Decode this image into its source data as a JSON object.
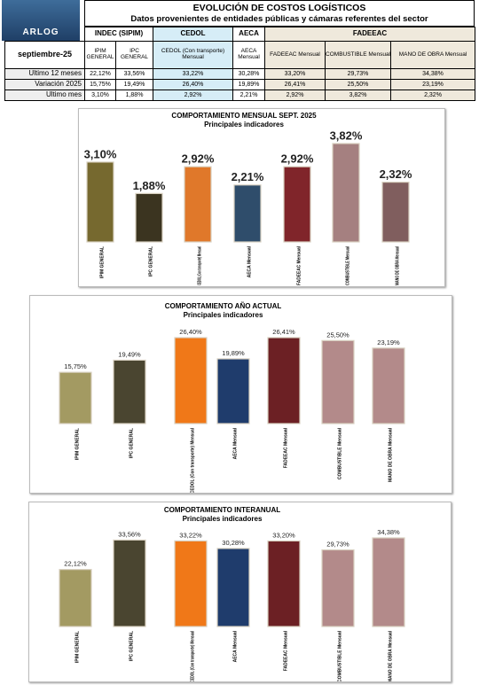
{
  "header": {
    "logo": "ARLOG",
    "title": "EVOLUCIÓN DE COSTOS LOGÍSTICOS",
    "subtitle": "Datos provenientes de entidades públicas y cámaras referentes del sector"
  },
  "table": {
    "period": "septiembre-25",
    "groups": [
      "INDEC (SIPIM)",
      "CEDOL",
      "AECA",
      "FADEEAC"
    ],
    "columns": [
      "IPIM GENERAL",
      "IPC GENERAL",
      "CEDOL (Con transporte) Mensual",
      "AECA Mensual",
      "FADEEAC Mensual",
      "COMBUSTIBLE Mensual",
      "MANO DE OBRA Mensual"
    ],
    "rows": [
      {
        "label": "Ultimo 12 meses",
        "cells": [
          "22,12%",
          "33,56%",
          "33,22%",
          "30,28%",
          "33,20%",
          "29,73%",
          "34,38%"
        ]
      },
      {
        "label": "Variación 2025",
        "cells": [
          "15,75%",
          "19,49%",
          "26,40%",
          "19,89%",
          "26,41%",
          "25,50%",
          "23,19%"
        ]
      },
      {
        "label": "Ultimo mes",
        "cells": [
          "3,10%",
          "1,88%",
          "2,92%",
          "2,21%",
          "2,92%",
          "3,82%",
          "2,32%"
        ]
      }
    ]
  },
  "chart_data": [
    {
      "type": "bar",
      "title": "COMPORTAMIENTO MENSUAL SEPT. 2025",
      "subtitle": "Principales indicadores",
      "categories": [
        "IPIM GENERAL",
        "IPC GENERAL",
        "CEDOL (Con transporte) Mensual",
        "AECA Mensual",
        "FADEEAC Mensual",
        "COMBUSTIBLE Mensual",
        "MANO DE OBRA Mensual"
      ],
      "values": [
        3.1,
        1.88,
        2.92,
        2.21,
        2.92,
        3.82,
        2.32
      ],
      "value_labels": [
        "3,10%",
        "1,88%",
        "2,92%",
        "2,21%",
        "2,92%",
        "3,82%",
        "2,32%"
      ],
      "colors": [
        "#76692f",
        "#3b3420",
        "#e0782a",
        "#2f4d6b",
        "#80252a",
        "#a58080",
        "#805e5e"
      ]
    },
    {
      "type": "bar",
      "title": "COMPORTAMIENTO AÑO ACTUAL",
      "subtitle": "Principales indicadores",
      "categories": [
        "IPIM GENERAL",
        "IPC GENERAL",
        "CEDOL (Con transporte) Mensual",
        "AECA Mensual",
        "FADEEAC Mensual",
        "COMBUSTIBLE Mensual",
        "MANO DE OBRA Mensual"
      ],
      "values": [
        15.75,
        19.49,
        26.4,
        19.89,
        26.41,
        25.5,
        23.19
      ],
      "value_labels": [
        "15,75%",
        "19,49%",
        "26,40%",
        "19,89%",
        "26,41%",
        "25,50%",
        "23,19%"
      ],
      "colors": [
        "#a39a62",
        "#4a4530",
        "#f07818",
        "#1f3c6c",
        "#6c2024",
        "#b38a8a",
        "#b38a8a"
      ]
    },
    {
      "type": "bar",
      "title": "COMPORTAMIENTO INTERANUAL",
      "subtitle": "Principales indicadores",
      "categories": [
        "IPIM GENERAL",
        "IPC GENERAL",
        "CEDOL (Con transporte) Mensual",
        "AECA Mensual",
        "FADEEAC Mensual",
        "COMBUSTIBLE Mensual",
        "MANO DE OBRA Mensual"
      ],
      "values": [
        22.12,
        33.56,
        33.22,
        30.28,
        33.2,
        29.73,
        34.38
      ],
      "value_labels": [
        "22,12%",
        "33,56%",
        "33,22%",
        "30,28%",
        "33,20%",
        "29,73%",
        "34,38%"
      ],
      "colors": [
        "#a39a62",
        "#4a4530",
        "#f07818",
        "#1f3c6c",
        "#6c2024",
        "#b38a8a",
        "#b38a8a"
      ]
    }
  ]
}
